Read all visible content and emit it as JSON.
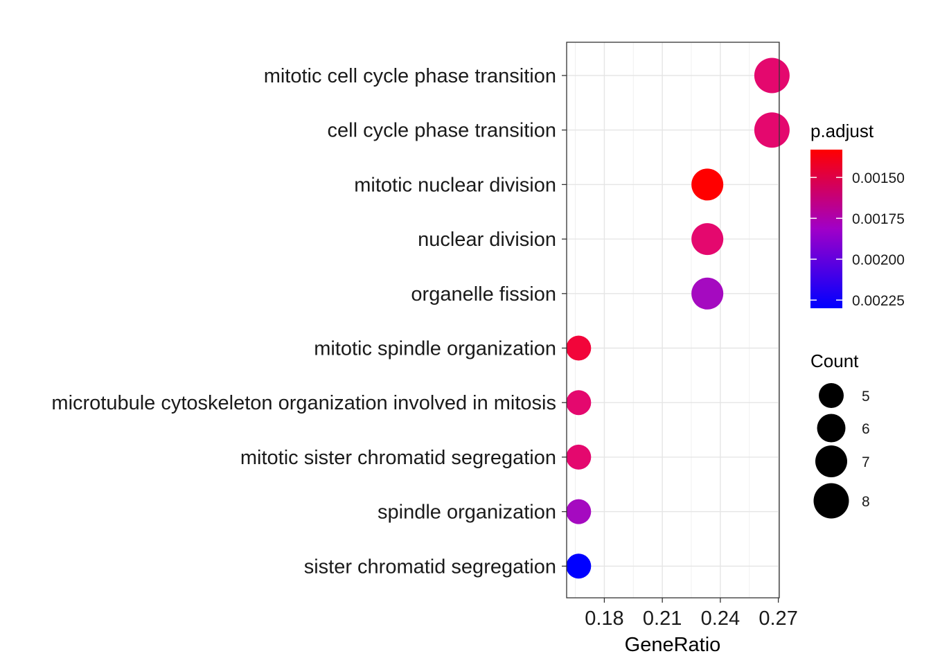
{
  "chart_data": {
    "type": "scatter",
    "xlabel": "GeneRatio",
    "ylabel": "",
    "xlim": [
      0.1605,
      0.2705
    ],
    "x_ticks": [
      {
        "value": 0.18,
        "label": "0.18"
      },
      {
        "value": 0.21,
        "label": "0.21"
      },
      {
        "value": 0.24,
        "label": "0.24"
      },
      {
        "value": 0.27,
        "label": "0.27"
      }
    ],
    "grid": true,
    "points": [
      {
        "term": "mitotic cell cycle phase transition",
        "gene_ratio": 0.2667,
        "count": 8,
        "p_adjust": 0.00165,
        "color": "#e4086e"
      },
      {
        "term": "cell cycle phase transition",
        "gene_ratio": 0.2667,
        "count": 8,
        "p_adjust": 0.00165,
        "color": "#e4086e"
      },
      {
        "term": "mitotic nuclear division",
        "gene_ratio": 0.2333,
        "count": 7,
        "p_adjust": 0.00138,
        "color": "#ff0000"
      },
      {
        "term": "nuclear division",
        "gene_ratio": 0.2333,
        "count": 7,
        "p_adjust": 0.00165,
        "color": "#e4086e"
      },
      {
        "term": "organelle fission",
        "gene_ratio": 0.2333,
        "count": 7,
        "p_adjust": 0.00195,
        "color": "#a50ac0"
      },
      {
        "term": "mitotic spindle organization",
        "gene_ratio": 0.1667,
        "count": 5,
        "p_adjust": 0.00152,
        "color": "#f2053a"
      },
      {
        "term": "microtubule cytoskeleton organization involved in mitosis",
        "gene_ratio": 0.1667,
        "count": 5,
        "p_adjust": 0.00165,
        "color": "#e4086e"
      },
      {
        "term": "mitotic sister chromatid segregation",
        "gene_ratio": 0.1667,
        "count": 5,
        "p_adjust": 0.00165,
        "color": "#e4086e"
      },
      {
        "term": "spindle organization",
        "gene_ratio": 0.1667,
        "count": 5,
        "p_adjust": 0.00195,
        "color": "#a50ac0"
      },
      {
        "term": "sister chromatid segregation",
        "gene_ratio": 0.1667,
        "count": 5,
        "p_adjust": 0.00228,
        "color": "#0000ff"
      }
    ],
    "color_legend": {
      "title": "p.adjust",
      "range": [
        0.00133,
        0.0023
      ],
      "low_color": "#ff0000",
      "mid_color": "#a000c8",
      "high_color": "#0000ff",
      "ticks": [
        {
          "value": 0.0015,
          "label": "0.00150"
        },
        {
          "value": 0.00175,
          "label": "0.00175"
        },
        {
          "value": 0.002,
          "label": "0.00200"
        },
        {
          "value": 0.00225,
          "label": "0.00225"
        }
      ]
    },
    "size_legend": {
      "title": "Count",
      "entries": [
        {
          "count": 5,
          "label": "5"
        },
        {
          "count": 6,
          "label": "6"
        },
        {
          "count": 7,
          "label": "7"
        },
        {
          "count": 8,
          "label": "8"
        }
      ]
    }
  }
}
